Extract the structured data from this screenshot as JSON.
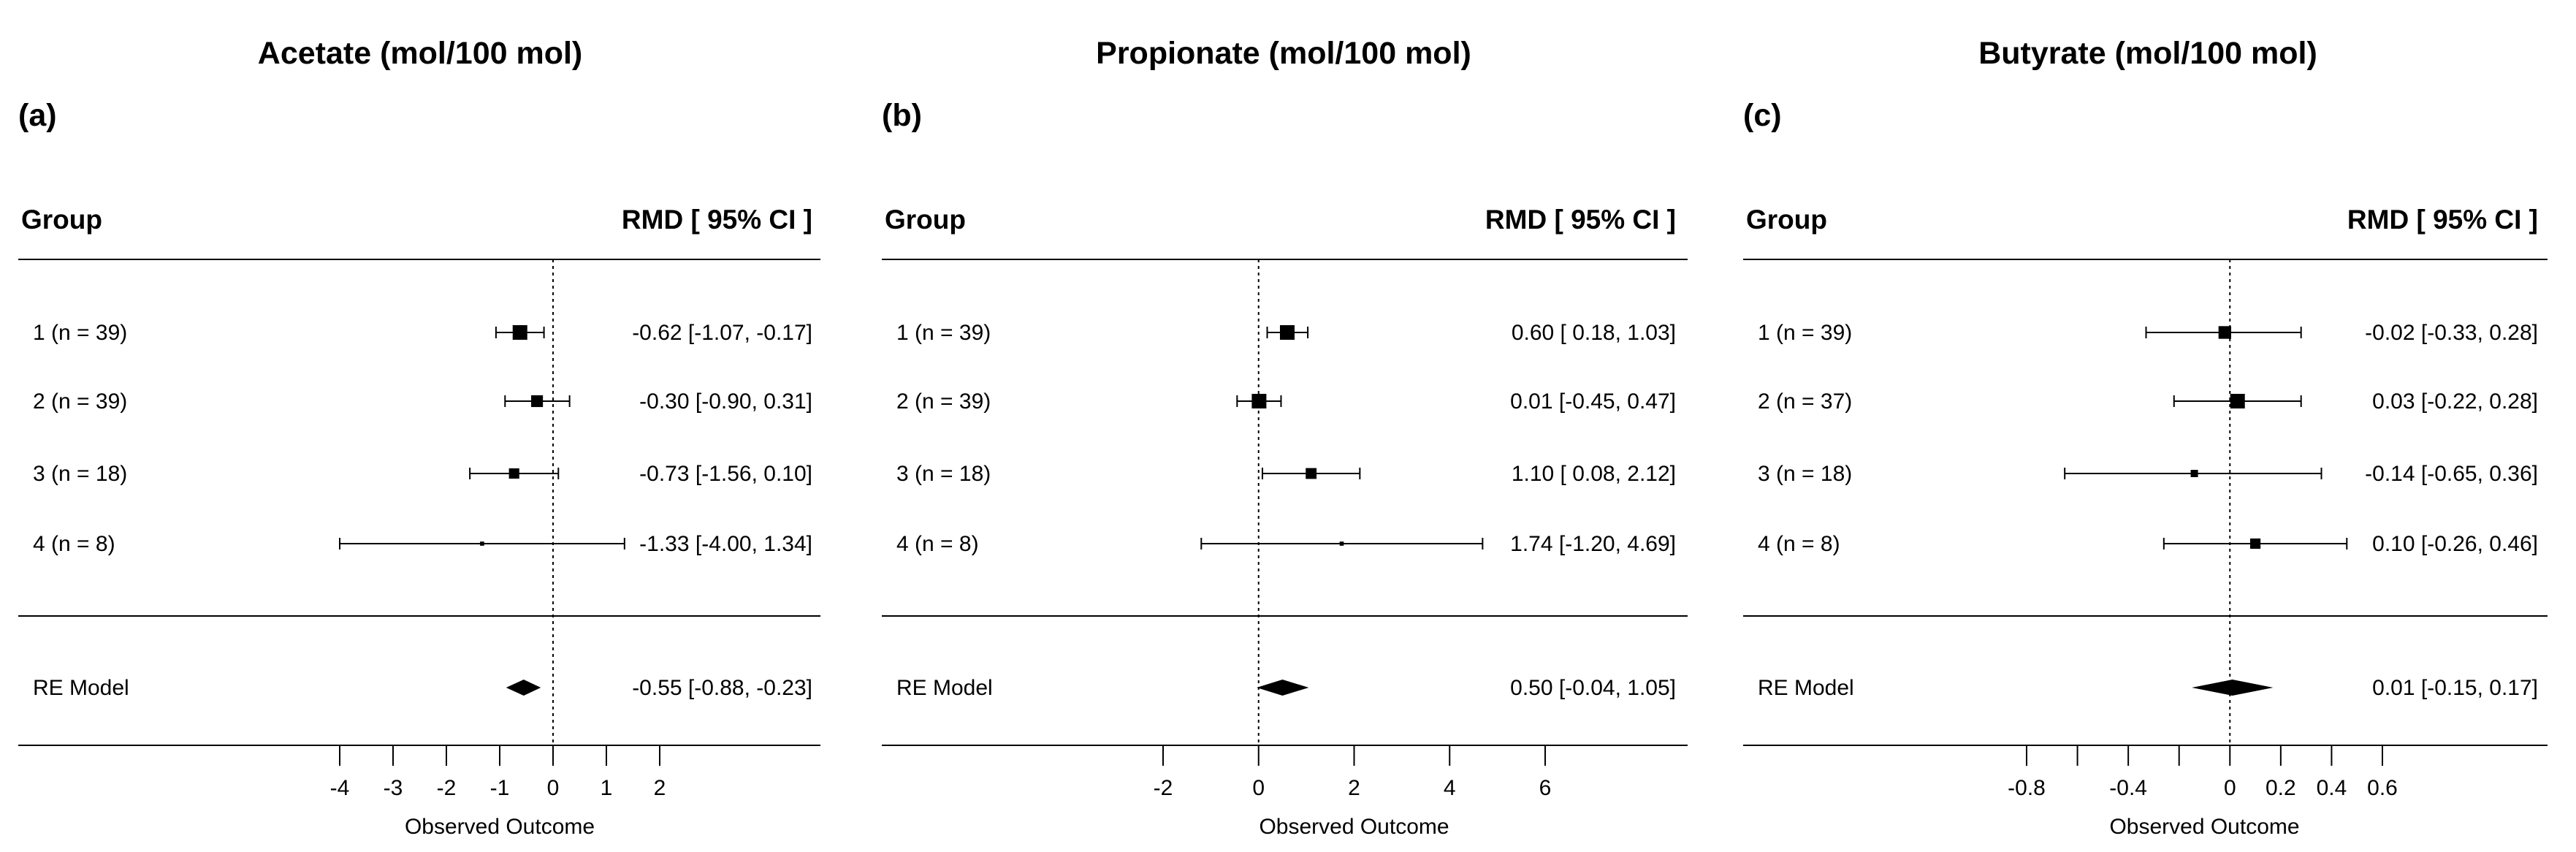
{
  "chart_data": [
    {
      "type": "forest",
      "panel": "(a)",
      "title": "Acetate (mol/100 mol)",
      "header_left": "Group",
      "header_right": "RMD  [ 95% CI ]",
      "xlabel": "Observed Outcome",
      "xlim": [
        -4,
        2
      ],
      "ticks": [
        -4,
        -3,
        -2,
        -1,
        0,
        1,
        2
      ],
      "tick_labels": [
        "-4",
        "-3",
        "-2",
        "-1",
        "0",
        "1",
        "2"
      ],
      "studies": [
        {
          "label": "1 (n = 39)",
          "est": -0.62,
          "lo": -1.07,
          "hi": -0.17,
          "text": "-0.62 [-1.07, -0.17]",
          "weight": 1.0
        },
        {
          "label": "2 (n = 39)",
          "est": -0.3,
          "lo": -0.9,
          "hi": 0.31,
          "text": "-0.30 [-0.90,  0.31]",
          "weight": 0.65
        },
        {
          "label": "3 (n = 18)",
          "est": -0.73,
          "lo": -1.56,
          "hi": 0.1,
          "text": "-0.73 [-1.56,  0.10]",
          "weight": 0.5
        },
        {
          "label": "4 (n = 8)",
          "est": -1.33,
          "lo": -4.0,
          "hi": 1.34,
          "text": "-1.33 [-4.00,  1.34]",
          "weight": 0.08
        }
      ],
      "summary": {
        "label": "RE Model",
        "est": -0.55,
        "lo": -0.88,
        "hi": -0.23,
        "text": "-0.55 [-0.88, -0.23]"
      }
    },
    {
      "type": "forest",
      "panel": "(b)",
      "title": "Propionate (mol/100 mol)",
      "header_left": "Group",
      "header_right": "RMD  [ 95% CI ]",
      "xlabel": "Observed Outcome",
      "xlim": [
        -2,
        6
      ],
      "ticks": [
        -2,
        0,
        2,
        4,
        6
      ],
      "tick_labels": [
        "-2",
        "0",
        "2",
        "4",
        "6"
      ],
      "studies": [
        {
          "label": "1 (n = 39)",
          "est": 0.6,
          "lo": 0.18,
          "hi": 1.03,
          "text": "0.60 [ 0.18, 1.03]",
          "weight": 1.0
        },
        {
          "label": "2 (n = 39)",
          "est": 0.01,
          "lo": -0.45,
          "hi": 0.47,
          "text": "0.01 [-0.45, 0.47]",
          "weight": 1.0
        },
        {
          "label": "3 (n = 18)",
          "est": 1.1,
          "lo": 0.08,
          "hi": 2.12,
          "text": "1.10 [ 0.08, 2.12]",
          "weight": 0.55
        },
        {
          "label": "4 (n = 8)",
          "est": 1.74,
          "lo": -1.2,
          "hi": 4.69,
          "text": "1.74 [-1.20, 4.69]",
          "weight": 0.08
        }
      ],
      "summary": {
        "label": "RE Model",
        "est": 0.5,
        "lo": -0.04,
        "hi": 1.05,
        "text": "0.50 [-0.04, 1.05]"
      }
    },
    {
      "type": "forest",
      "panel": "(c)",
      "title": "Butyrate (mol/100 mol)",
      "header_left": "Group",
      "header_right": "RMD  [ 95% CI ]",
      "xlabel": "Observed Outcome",
      "xlim": [
        -0.8,
        0.6
      ],
      "ticks": [
        -0.8,
        -0.6,
        -0.4,
        -0.2,
        0,
        0.2,
        0.4,
        0.6
      ],
      "tick_labels": [
        "-0.8",
        "",
        "-0.4",
        "",
        "0",
        "0.2",
        "0.4",
        "0.6"
      ],
      "studies": [
        {
          "label": "1 (n = 39)",
          "est": -0.02,
          "lo": -0.33,
          "hi": 0.28,
          "text": "-0.02 [-0.33, 0.28]",
          "weight": 0.75
        },
        {
          "label": "2 (n = 37)",
          "est": 0.03,
          "lo": -0.22,
          "hi": 0.28,
          "text": "0.03 [-0.22, 0.28]",
          "weight": 1.0
        },
        {
          "label": "3 (n = 18)",
          "est": -0.14,
          "lo": -0.65,
          "hi": 0.36,
          "text": "-0.14 [-0.65, 0.36]",
          "weight": 0.25
        },
        {
          "label": "4 (n = 8)",
          "est": 0.1,
          "lo": -0.26,
          "hi": 0.46,
          "text": "0.10 [-0.26, 0.46]",
          "weight": 0.5
        }
      ],
      "summary": {
        "label": "RE Model",
        "est": 0.01,
        "lo": -0.15,
        "hi": 0.17,
        "text": "0.01 [-0.15, 0.17]"
      }
    }
  ]
}
